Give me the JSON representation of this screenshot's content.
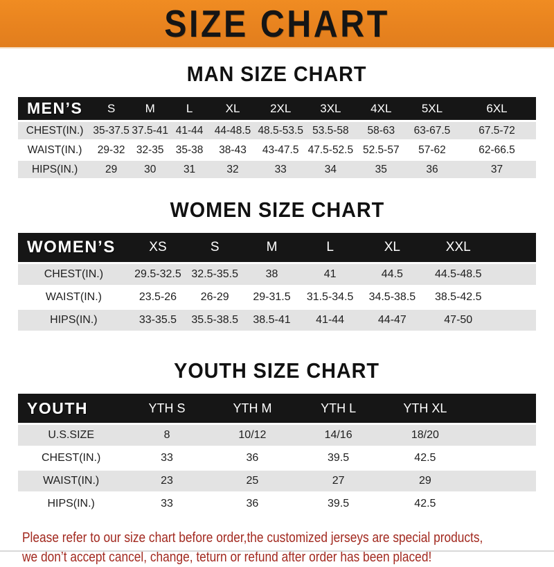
{
  "header": {
    "title": "SIZE CHART"
  },
  "colors": {
    "banner_orange": "#E8831F",
    "band_black": "#161616",
    "row_gray": "#E3E3E3",
    "footer_red": "#A2291F"
  },
  "sections": [
    {
      "title": "MAN SIZE CHART",
      "table": {
        "header_label": "MEN’S",
        "columns": [
          "S",
          "M",
          "L",
          "XL",
          "2XL",
          "3XL",
          "4XL",
          "5XL",
          "6XL"
        ],
        "rows": [
          {
            "label": "CHEST(IN.)",
            "values": [
              "35-37.5",
              "37.5-41",
              "41-44",
              "44-48.5",
              "48.5-53.5",
              "53.5-58",
              "58-63",
              "63-67.5",
              "67.5-72"
            ]
          },
          {
            "label": "WAIST(IN.)",
            "values": [
              "29-32",
              "32-35",
              "35-38",
              "38-43",
              "43-47.5",
              "47.5-52.5",
              "52.5-57",
              "57-62",
              "62-66.5"
            ]
          },
          {
            "label": "HIPS(IN.)",
            "values": [
              "29",
              "30",
              "31",
              "32",
              "33",
              "34",
              "35",
              "36",
              "37"
            ]
          }
        ]
      }
    },
    {
      "title": "WOMEN SIZE CHART",
      "table": {
        "header_label": "WOMEN’S",
        "columns": [
          "XS",
          "S",
          "M",
          "L",
          "XL",
          "XXL"
        ],
        "rows": [
          {
            "label": "CHEST(IN.)",
            "values": [
              "29.5-32.5",
              "32.5-35.5",
              "38",
              "41",
              "44.5",
              "44.5-48.5"
            ]
          },
          {
            "label": "WAIST(IN.)",
            "values": [
              "23.5-26",
              "26-29",
              "29-31.5",
              "31.5-34.5",
              "34.5-38.5",
              "38.5-42.5"
            ]
          },
          {
            "label": "HIPS(IN.)",
            "values": [
              "33-35.5",
              "35.5-38.5",
              "38.5-41",
              "41-44",
              "44-47",
              "47-50"
            ]
          }
        ]
      }
    },
    {
      "title": "YOUTH SIZE CHART",
      "table": {
        "header_label": "YOUTH",
        "columns": [
          "YTH S",
          "YTH M",
          "YTH L",
          "YTH XL"
        ],
        "rows": [
          {
            "label": "U.S.SIZE",
            "values": [
              "8",
              "10/12",
              "14/16",
              "18/20"
            ]
          },
          {
            "label": "CHEST(IN.)",
            "values": [
              "33",
              "36",
              "39.5",
              "42.5"
            ]
          },
          {
            "label": "WAIST(IN.)",
            "values": [
              "23",
              "25",
              "27",
              "29"
            ]
          },
          {
            "label": "HIPS(IN.)",
            "values": [
              "33",
              "36",
              "39.5",
              "42.5"
            ]
          }
        ]
      }
    }
  ],
  "footer": {
    "line1": "Please refer to our size chart before order,the customized jerseys are special products,",
    "line2": "we don’t accept cancel, change, teturn or refund after order has been placed!"
  }
}
